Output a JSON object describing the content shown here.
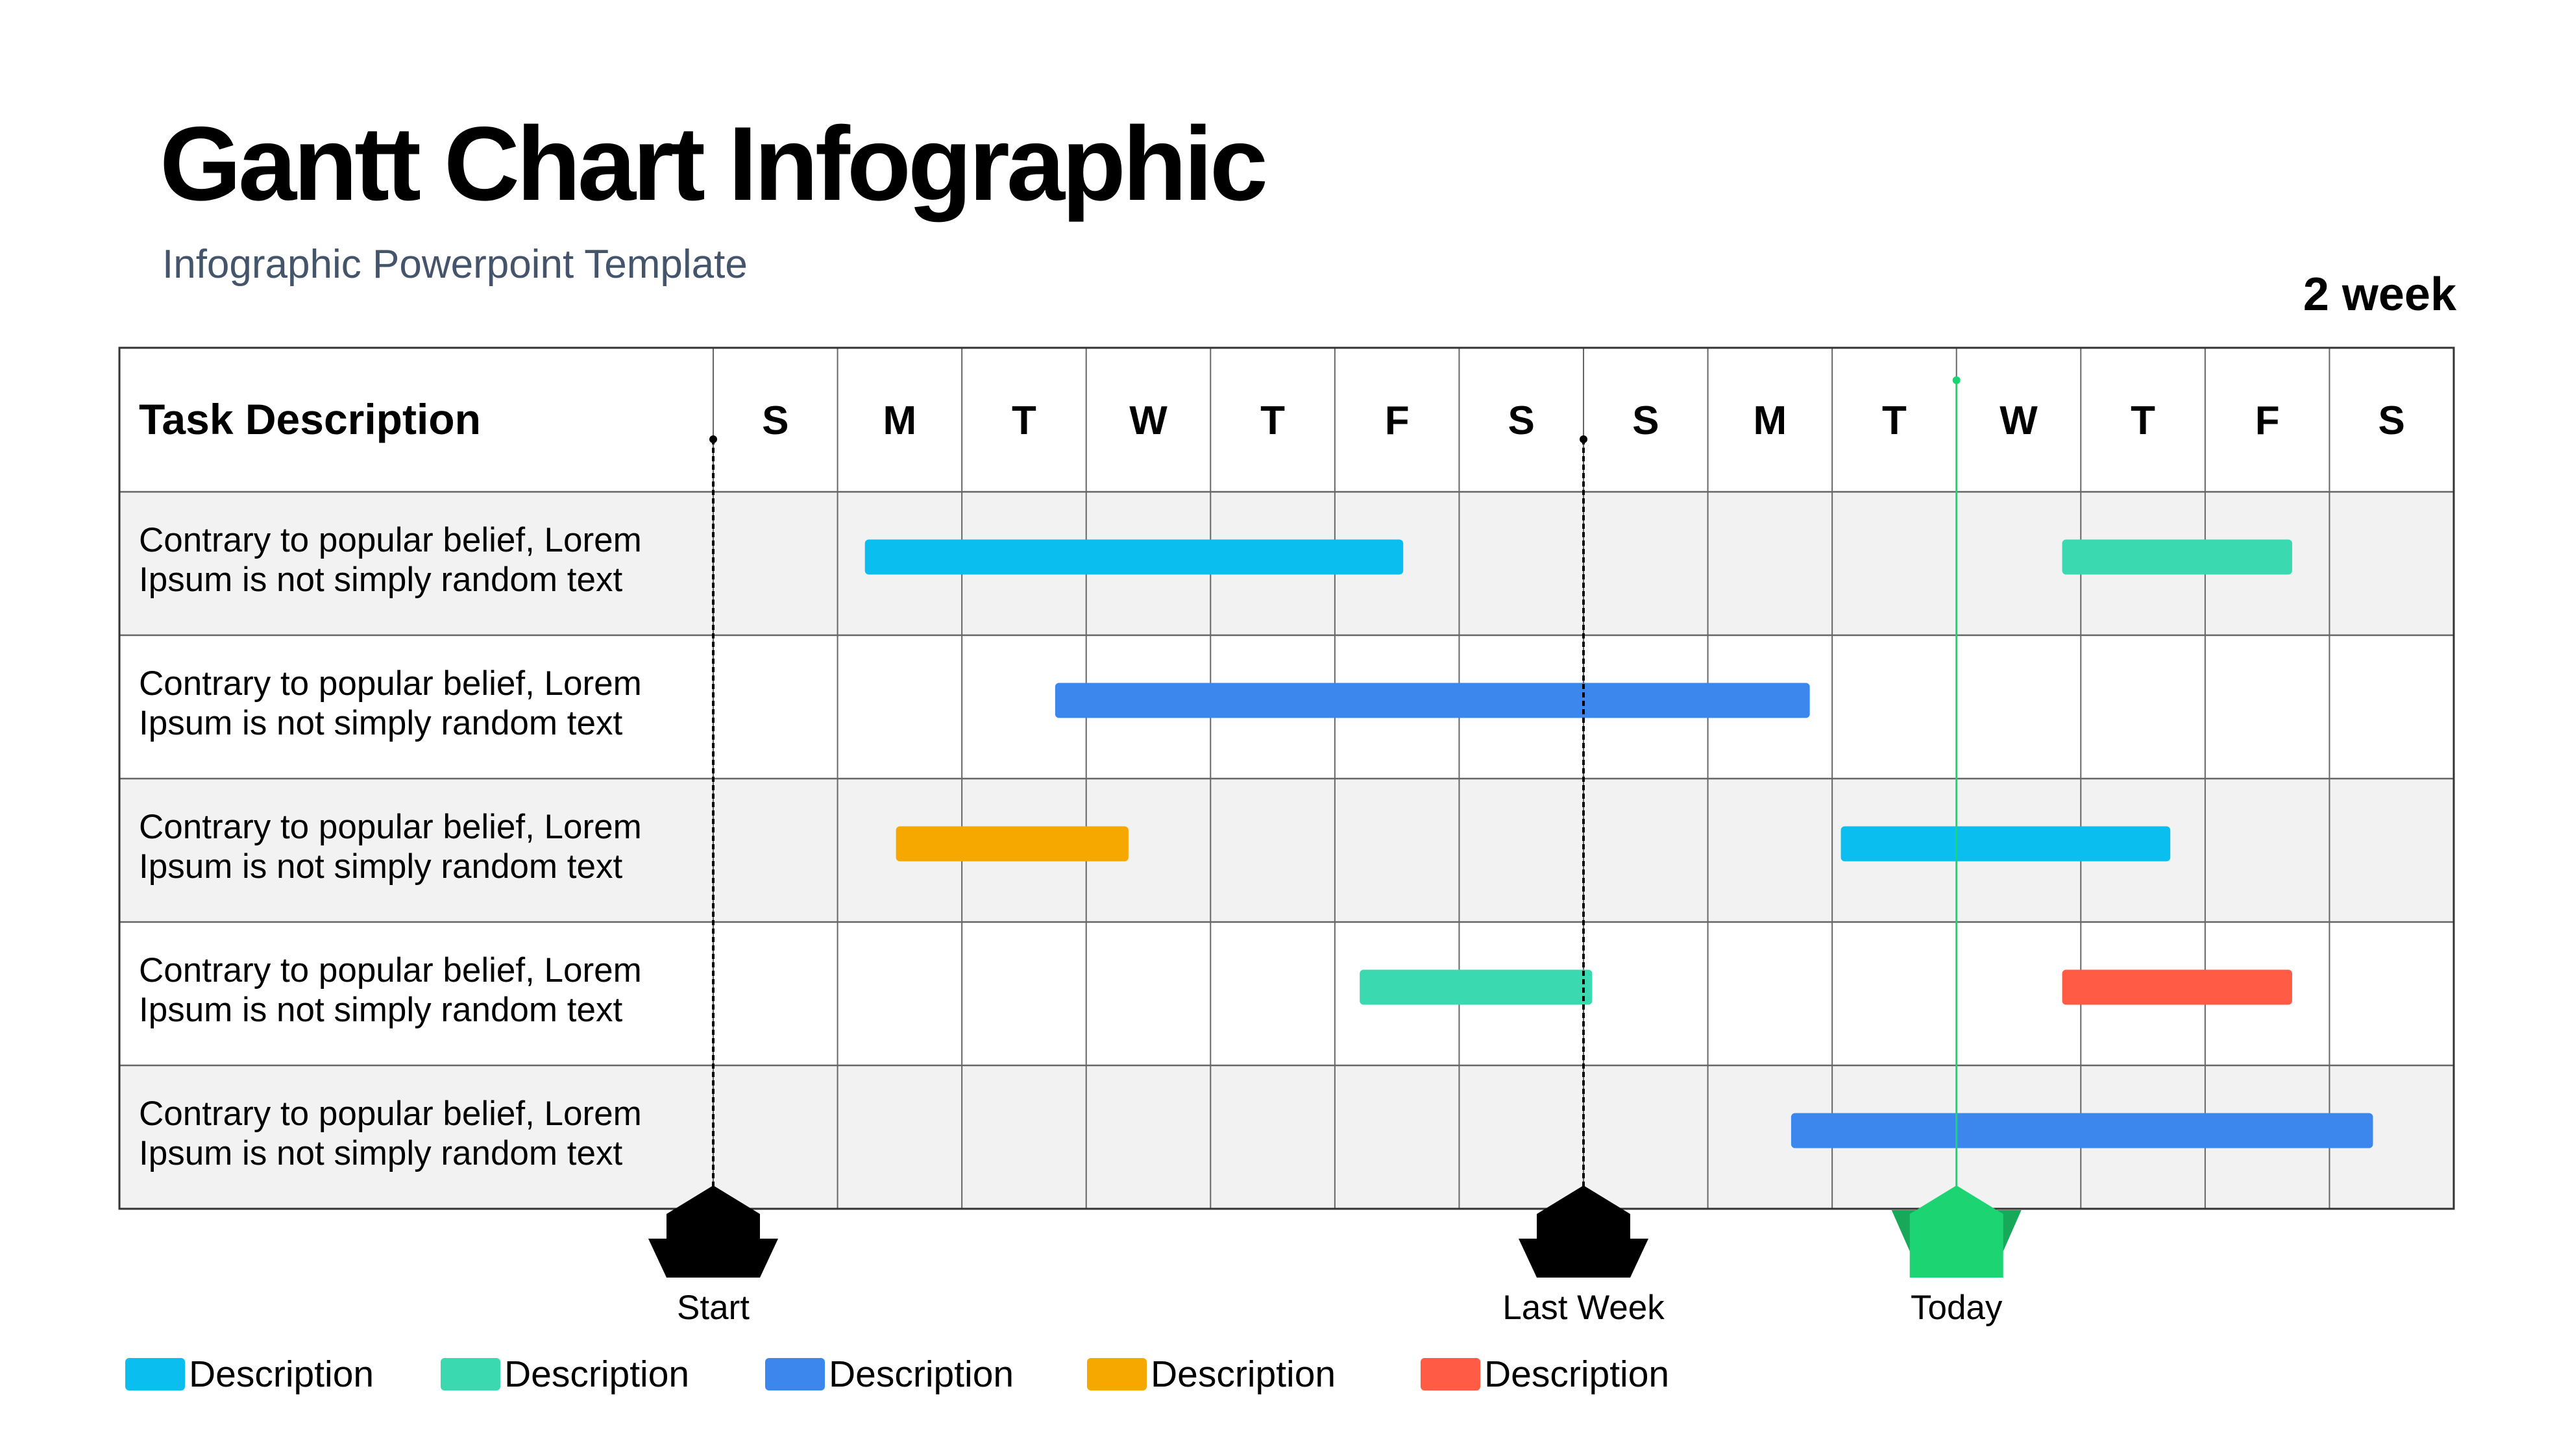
{
  "header": {
    "title": "Gantt Chart Infographic",
    "subtitle": "Infographic Powerpoint Template",
    "period": "2 week"
  },
  "colors": {
    "cyan": "#0ABEF0",
    "teal": "#3AD9B0",
    "blue": "#3B87EE",
    "orange": "#F6A800",
    "red": "#FF5B45",
    "marker_dark": "#000000",
    "marker_today": "#1DD472",
    "row_shade": "#F2F2F2",
    "grid": "#666666"
  },
  "chart_data": {
    "type": "gantt",
    "title": "Gantt Chart Infographic",
    "column_header": "Task Description",
    "days": [
      "S",
      "M",
      "T",
      "W",
      "T",
      "F",
      "S",
      "S",
      "M",
      "T",
      "W",
      "T",
      "F",
      "S"
    ],
    "tasks": [
      {
        "label": "Contrary to popular belief, Lorem Ipsum is not simply random text",
        "line1": "Contrary to popular belief, Lorem",
        "line2": "Ipsum is not simply random text",
        "bars": [
          {
            "start": 1.22,
            "end": 5.55,
            "color": "cyan"
          },
          {
            "start": 10.85,
            "end": 12.7,
            "color": "teal"
          }
        ]
      },
      {
        "label": "Contrary to popular belief, Lorem Ipsum is not simply random text",
        "line1": "Contrary to popular belief, Lorem",
        "line2": "Ipsum is not simply random text",
        "bars": [
          {
            "start": 2.75,
            "end": 8.82,
            "color": "blue"
          }
        ]
      },
      {
        "label": "Contrary to popular belief, Lorem Ipsum is not simply random text",
        "line1": "Contrary to popular belief, Lorem",
        "line2": "Ipsum is not simply random text",
        "bars": [
          {
            "start": 1.47,
            "end": 3.34,
            "color": "orange"
          },
          {
            "start": 9.07,
            "end": 11.72,
            "color": "cyan"
          }
        ]
      },
      {
        "label": "Contrary to popular belief, Lorem Ipsum is not simply random text",
        "line1": "Contrary to popular belief, Lorem",
        "line2": "Ipsum is not simply random text",
        "bars": [
          {
            "start": 5.2,
            "end": 7.07,
            "color": "teal"
          },
          {
            "start": 10.85,
            "end": 12.7,
            "color": "red"
          }
        ]
      },
      {
        "label": "Contrary to popular belief, Lorem Ipsum is not simply random text",
        "line1": "Contrary to popular belief, Lorem",
        "line2": "Ipsum is not simply random text",
        "bars": [
          {
            "start": 8.67,
            "end": 13.35,
            "color": "blue"
          }
        ]
      }
    ],
    "markers": [
      {
        "label": "Start",
        "position": 0.0,
        "style": "dark"
      },
      {
        "label": "Last Week",
        "position": 7.0,
        "style": "dark"
      },
      {
        "label": "Today",
        "position": 10.0,
        "style": "today"
      }
    ],
    "legend": [
      {
        "label": "Description",
        "color": "cyan"
      },
      {
        "label": "Description",
        "color": "teal"
      },
      {
        "label": "Description",
        "color": "blue"
      },
      {
        "label": "Description",
        "color": "orange"
      },
      {
        "label": "Description",
        "color": "red"
      }
    ]
  }
}
